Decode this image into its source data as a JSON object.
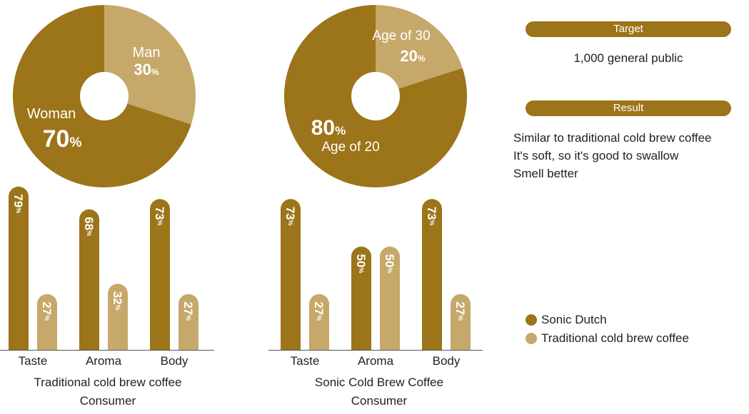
{
  "colors": {
    "dark": "#9c7419",
    "light": "#c6a86a"
  },
  "chart_data": [
    {
      "type": "pie",
      "slices": [
        {
          "label": "Man",
          "value": 30,
          "display": "30%",
          "color": "light"
        },
        {
          "label": "Woman",
          "value": 70,
          "display": "70%",
          "color": "dark"
        }
      ]
    },
    {
      "type": "pie",
      "slices": [
        {
          "label": "Age of 30",
          "value": 20,
          "display": "20%",
          "color": "light"
        },
        {
          "label": "Age of 20",
          "value": 80,
          "display": "80%",
          "color": "dark"
        }
      ]
    },
    {
      "type": "bar",
      "categories": [
        "Taste",
        "Aroma",
        "Body"
      ],
      "ylim": [
        0,
        100
      ],
      "series": [
        {
          "name": "Sonic Dutch",
          "color": "dark",
          "values": [
            79,
            68,
            73
          ]
        },
        {
          "name": "Traditional cold brew coffee",
          "color": "light",
          "values": [
            27,
            32,
            27
          ]
        }
      ],
      "title_lines": [
        "Traditional cold brew coffee",
        "Consumer"
      ]
    },
    {
      "type": "bar",
      "categories": [
        "Taste",
        "Aroma",
        "Body"
      ],
      "ylim": [
        0,
        100
      ],
      "series": [
        {
          "name": "Sonic Dutch",
          "color": "dark",
          "values": [
            73,
            50,
            73
          ]
        },
        {
          "name": "Traditional cold brew coffee",
          "color": "light",
          "values": [
            27,
            50,
            27
          ]
        }
      ],
      "title_lines": [
        "Sonic Cold Brew Coffee",
        "Consumer"
      ]
    }
  ],
  "info": {
    "target_label": "Target",
    "target_text": "1,000 general public",
    "result_label": "Result",
    "result_lines": [
      "Similar to traditional cold brew coffee",
      "It's soft, so it's good to swallow",
      "Smell better"
    ]
  },
  "legend": [
    {
      "label": "Sonic Dutch",
      "color": "dark"
    },
    {
      "label": "Traditional cold brew coffee",
      "color": "light"
    }
  ]
}
